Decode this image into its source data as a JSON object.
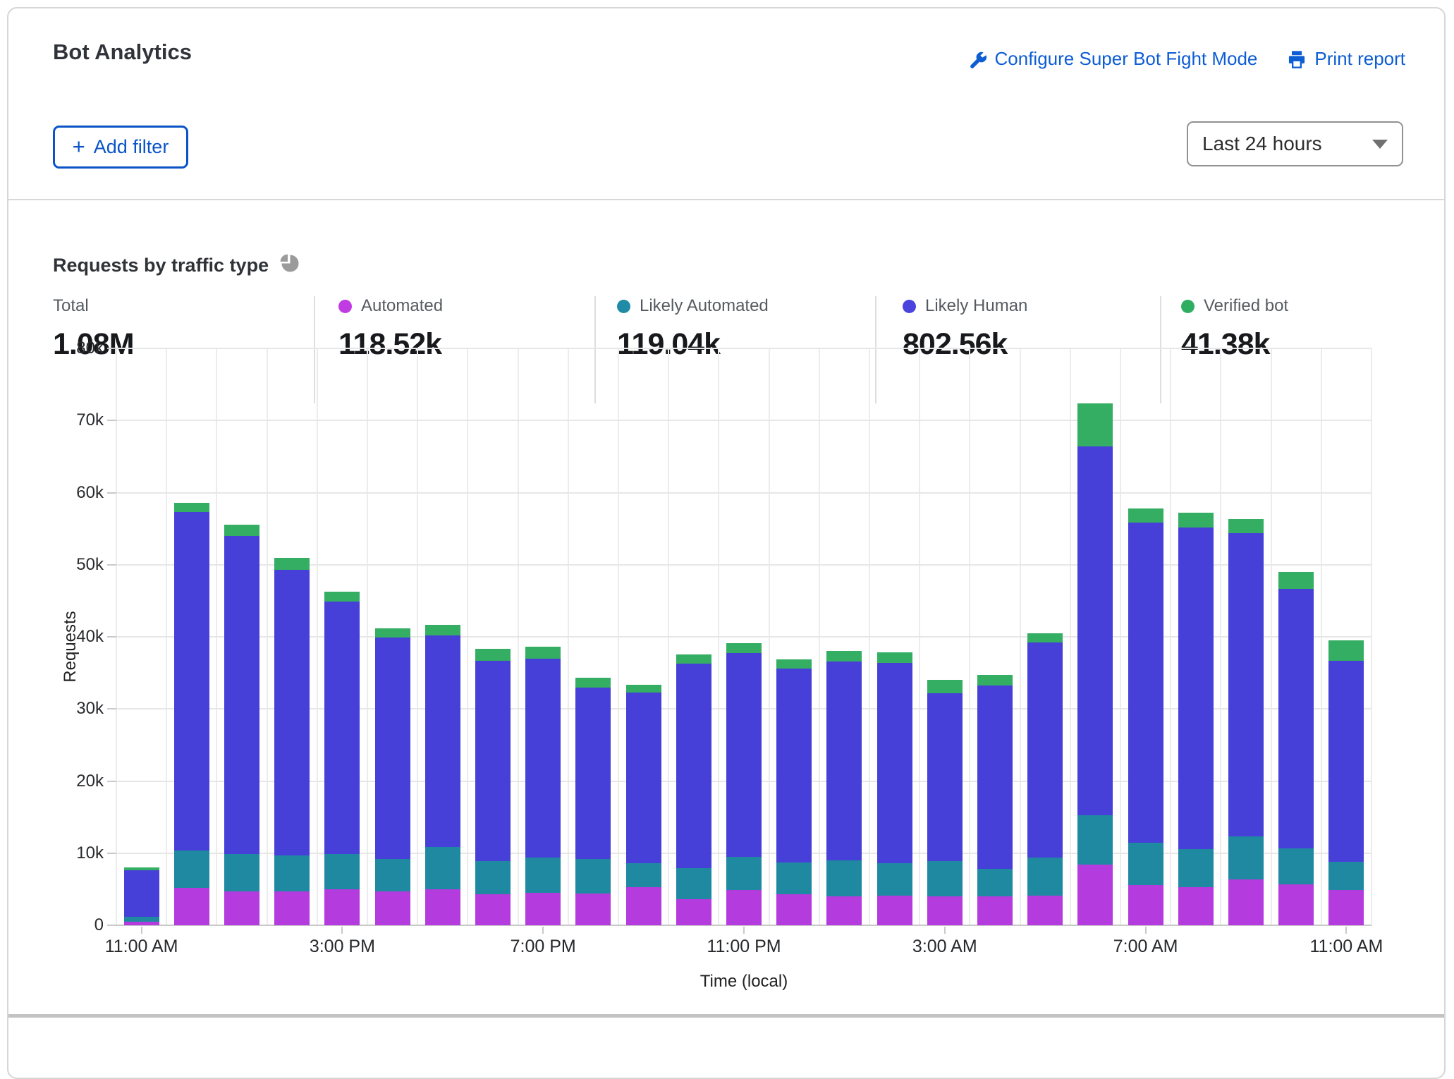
{
  "card": {
    "title": "Bot Analytics",
    "links": [
      {
        "label": "Configure Super Bot Fight Mode",
        "icon": "wrench-icon"
      },
      {
        "label": "Print report",
        "icon": "printer-icon"
      }
    ],
    "add_filter": {
      "plus": "+",
      "label": "Add filter"
    },
    "time_range": {
      "value": "Last 24 hours"
    },
    "accent_blue": "#0d5dd3"
  },
  "section": {
    "heading": "Requests by traffic type",
    "stats": [
      {
        "label": "Total",
        "value": "1.08M",
        "dot_color": ""
      },
      {
        "label": "Automated",
        "value": "118.52k",
        "dot_color": "#c03be2"
      },
      {
        "label": "Likely Automated",
        "value": "119.04k",
        "dot_color": "#1f8ba6"
      },
      {
        "label": "Likely Human",
        "value": "802.56k",
        "dot_color": "#4b43dd"
      },
      {
        "label": "Verified bot",
        "value": "41.38k",
        "dot_color": "#2fae62"
      }
    ]
  },
  "chart_data": {
    "type": "bar",
    "stacked": true,
    "title": "Requests by traffic type",
    "xlabel": "Time (local)",
    "ylabel": "Requests",
    "ylim": [
      0,
      80000
    ],
    "grid": true,
    "y_ticks": [
      {
        "value": 80000,
        "label": "80k"
      },
      {
        "value": 70000,
        "label": "70k"
      },
      {
        "value": 60000,
        "label": "60k"
      },
      {
        "value": 50000,
        "label": "50k"
      },
      {
        "value": 40000,
        "label": "40k"
      },
      {
        "value": 30000,
        "label": "30k"
      },
      {
        "value": 20000,
        "label": "20k"
      },
      {
        "value": 10000,
        "label": "10k"
      },
      {
        "value": 0,
        "label": "0"
      }
    ],
    "x_tick_labels": [
      "11:00 AM",
      "3:00 PM",
      "7:00 PM",
      "11:00 PM",
      "3:00 AM",
      "7:00 AM",
      "11:00 AM"
    ],
    "x_tick_positions": [
      0,
      4,
      8,
      12,
      16,
      20,
      24
    ],
    "x_unit": "1 bar per hour, 25 hourly bars from 11:00 AM to 11:00 AM",
    "series": [
      {
        "name": "Automated",
        "color": "#b43bdd",
        "values": [
          500,
          5200,
          4700,
          4700,
          5000,
          4700,
          5000,
          4300,
          4500,
          4400,
          5300,
          3600,
          4900,
          4300,
          4000,
          4100,
          4000,
          4000,
          4100,
          8400,
          5600,
          5300,
          6400,
          5700,
          4900
        ]
      },
      {
        "name": "Likely Automated",
        "color": "#2089a2",
        "values": [
          700,
          5200,
          5200,
          5000,
          4900,
          4500,
          5900,
          4600,
          4900,
          4800,
          3300,
          4300,
          4600,
          4400,
          5000,
          4500,
          4900,
          3800,
          5300,
          6900,
          5800,
          5300,
          5900,
          5000,
          3900
        ]
      },
      {
        "name": "Likely Human",
        "color": "#4640d8",
        "values": [
          6400,
          46900,
          44100,
          39600,
          35000,
          30700,
          29300,
          27800,
          27600,
          23800,
          23700,
          28400,
          28300,
          26900,
          27600,
          27800,
          23300,
          25500,
          29800,
          51100,
          44400,
          44600,
          42100,
          36000,
          27900
        ]
      },
      {
        "name": "Verified bot",
        "color": "#34ae62",
        "values": [
          400,
          1300,
          1600,
          1700,
          1400,
          1300,
          1500,
          1600,
          1600,
          1300,
          1100,
          1300,
          1300,
          1300,
          1400,
          1500,
          1800,
          1400,
          1300,
          6000,
          2000,
          2000,
          1900,
          2300,
          2800
        ]
      }
    ],
    "legend_position": "top (stats row)"
  }
}
